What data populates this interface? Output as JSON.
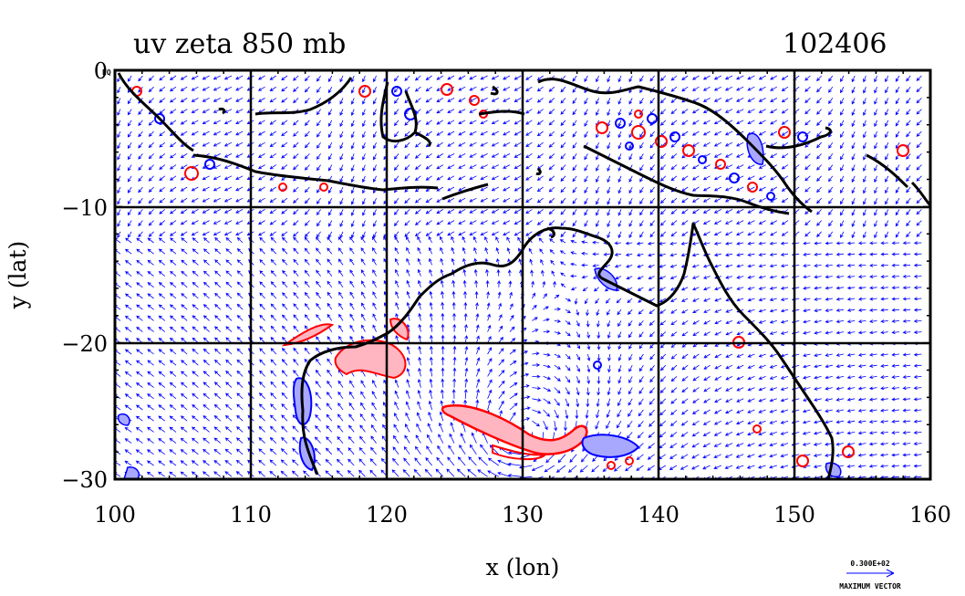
{
  "title_left": "uv zeta 850 mb",
  "title_right": "102406",
  "corner_label": "EQ",
  "x_axis": {
    "label": "x (lon)",
    "range": [
      100,
      160
    ],
    "ticks": [
      "100",
      "110",
      "120",
      "130",
      "140",
      "150",
      "160"
    ]
  },
  "y_axis": {
    "label": "y (lat)",
    "range": [
      -30,
      0
    ],
    "ticks": [
      "0",
      "−10",
      "−20",
      "−30"
    ]
  },
  "legend": {
    "vector_value": "0.300E+02",
    "vector_label": "MAXIMUM VECTOR"
  },
  "colors": {
    "coast": "#000000",
    "vectors": "#0000ff",
    "positive_vorticity": "#ff0000",
    "positive_fill": "#ffb6c1",
    "negative_vorticity": "#0000ff",
    "negative_fill": "#a8a8ff"
  },
  "map_data": {
    "type": "vector_field_with_contours",
    "grid": "on",
    "grid_lines_lon": [
      110,
      120,
      130,
      140,
      150
    ],
    "grid_lines_lat": [
      -10,
      -20
    ]
  }
}
